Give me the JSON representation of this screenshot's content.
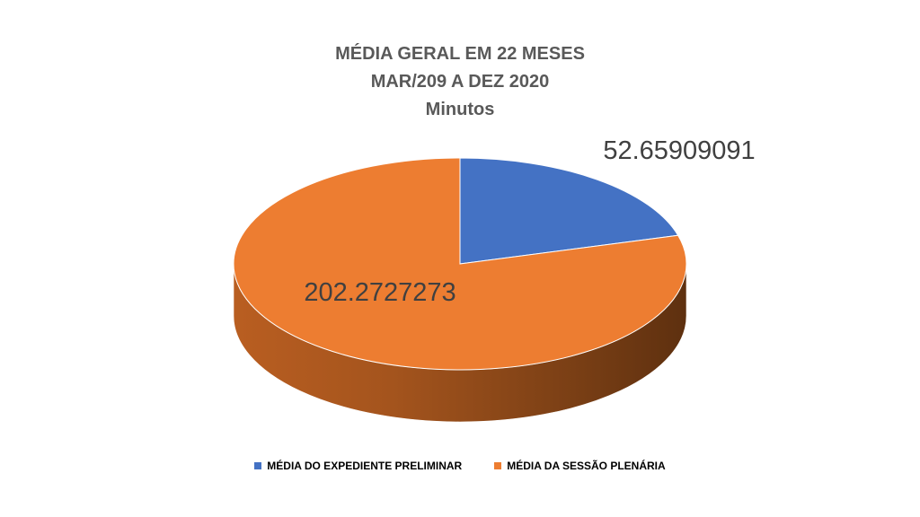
{
  "chart_data": {
    "type": "pie",
    "style": "3d",
    "title_lines": [
      "MÉDIA GERAL EM 22 MESES",
      "MAR/209 A DEZ 2020",
      "Minutos"
    ],
    "slices": [
      {
        "name": "MÉDIA DO EXPEDIENTE PRELIMINAR",
        "value": 52.65909091,
        "label": "52.65909091",
        "color": "#4472C4"
      },
      {
        "name": "MÉDIA DA SESSÃO PLENÁRIA",
        "value": 202.2727273,
        "label": "202.2727273",
        "color": "#ED7D31"
      }
    ],
    "legend_position": "bottom"
  }
}
